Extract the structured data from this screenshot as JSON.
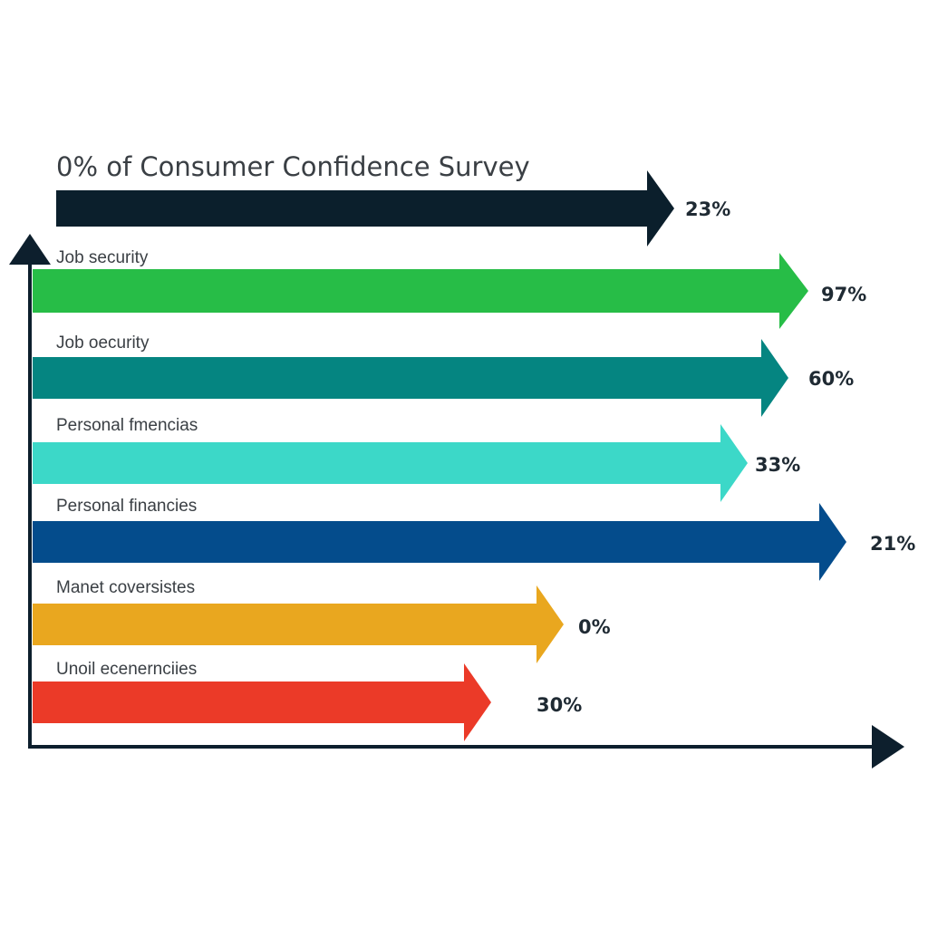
{
  "chart_data": {
    "type": "bar",
    "orientation": "horizontal",
    "title": "0% of Consumer Confidence Survey",
    "header_bar": {
      "value_label": "23%",
      "color": "#0b1f2c"
    },
    "bars": [
      {
        "label": "Job security",
        "value_label": "97%",
        "color": "#27bd47"
      },
      {
        "label": "Job oecurity",
        "value_label": "60%",
        "color": "#058581"
      },
      {
        "label": "Personal fmencias",
        "value_label": "33%",
        "color": "#3cd8c8"
      },
      {
        "label": "Personal financies",
        "value_label": "21%",
        "color": "#044c8c"
      },
      {
        "label": "Manet coversistes",
        "value_label": "0%",
        "color": "#e9a71f"
      },
      {
        "label": "Unoil ecenernciies",
        "value_label": "30%",
        "color": "#eb3a28"
      }
    ],
    "axis_color": "#0d1f2d",
    "grid": false,
    "legend": "none"
  }
}
